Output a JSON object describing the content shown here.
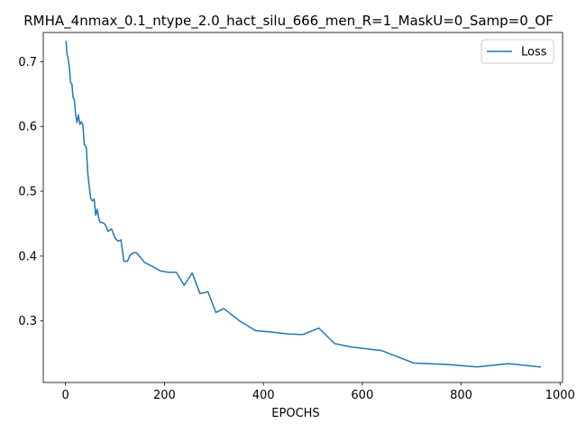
{
  "chart_data": {
    "type": "line",
    "title": "RMHA_4nmax_0.1_ntype_2.0_hact_silu_666_men_R=1_MaskU=0_Samp=0_OF",
    "xlabel": "EPOCHS",
    "ylabel": "",
    "xlim": [
      -45,
      1005
    ],
    "ylim": [
      0.205,
      0.745
    ],
    "x_ticks": [
      0,
      200,
      400,
      600,
      800,
      1000
    ],
    "y_ticks": [
      0.3,
      0.4,
      0.5,
      0.6,
      0.7
    ],
    "x_tick_labels": [
      "0",
      "200",
      "400",
      "600",
      "800",
      "1000"
    ],
    "y_tick_labels": [
      "0.3",
      "0.4",
      "0.5",
      "0.6",
      "0.7"
    ],
    "grid": false,
    "legend_position": "top-right",
    "series": [
      {
        "name": "Loss",
        "color": "#1f77b4",
        "x": [
          1,
          3,
          5,
          8,
          10,
          13,
          15,
          18,
          20,
          23,
          26,
          29,
          32,
          35,
          38,
          42,
          45,
          48,
          51,
          54,
          58,
          61,
          64,
          67,
          70,
          74,
          80,
          86,
          93,
          100,
          106,
          112,
          118,
          125,
          131,
          137,
          144,
          160,
          176,
          192,
          208,
          224,
          240,
          256,
          272,
          288,
          304,
          320,
          352,
          384,
          416,
          448,
          480,
          512,
          544,
          576,
          608,
          640,
          704,
          768,
          832,
          896,
          960
        ],
        "y": [
          0.731,
          0.712,
          0.706,
          0.69,
          0.668,
          0.665,
          0.646,
          0.64,
          0.621,
          0.606,
          0.618,
          0.603,
          0.607,
          0.603,
          0.572,
          0.568,
          0.528,
          0.507,
          0.489,
          0.485,
          0.488,
          0.463,
          0.472,
          0.459,
          0.452,
          0.452,
          0.449,
          0.438,
          0.442,
          0.428,
          0.423,
          0.425,
          0.392,
          0.392,
          0.402,
          0.405,
          0.405,
          0.39,
          0.384,
          0.377,
          0.375,
          0.375,
          0.355,
          0.374,
          0.342,
          0.345,
          0.313,
          0.319,
          0.3,
          0.285,
          0.283,
          0.28,
          0.279,
          0.289,
          0.265,
          0.26,
          0.257,
          0.254,
          0.235,
          0.233,
          0.229,
          0.234,
          0.229
        ]
      }
    ]
  }
}
